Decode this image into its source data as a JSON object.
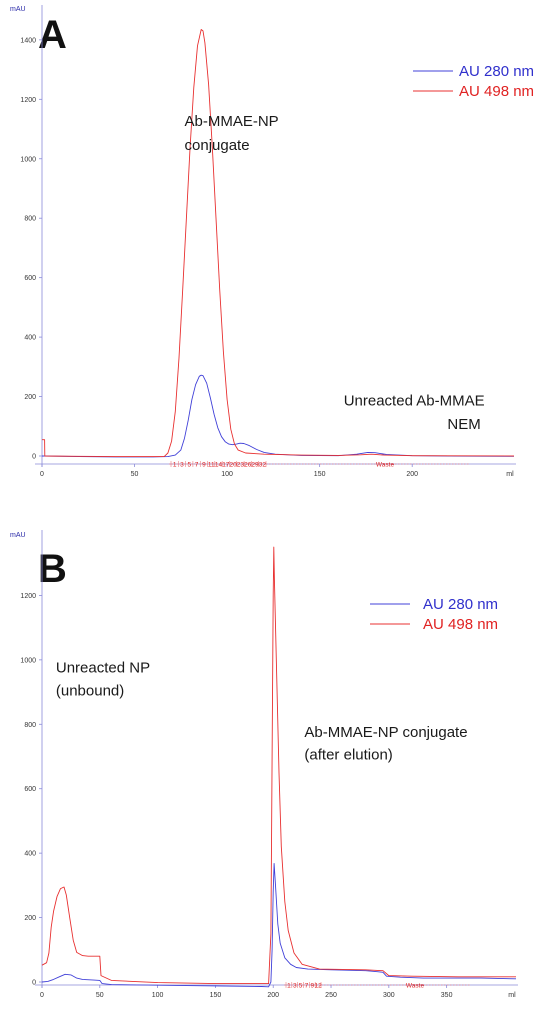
{
  "chart_data": [
    {
      "panel": "A",
      "type": "line",
      "y_unit": "mAU",
      "x_unit": "ml",
      "xlim": [
        0,
        255
      ],
      "ylim": [
        0,
        1450
      ],
      "x_ticks": [
        0,
        50,
        100,
        150,
        200
      ],
      "y_ticks": [
        0,
        200,
        400,
        600,
        800,
        1000,
        1200,
        1400
      ],
      "legend_position": "top-right",
      "series": [
        {
          "name": "AU 280 nm",
          "color": "#4040d8",
          "points": [
            [
              0,
              0
            ],
            [
              20,
              -2
            ],
            [
              40,
              -3
            ],
            [
              60,
              -3
            ],
            [
              68,
              -2
            ],
            [
              72,
              3
            ],
            [
              75,
              20
            ],
            [
              77,
              60
            ],
            [
              79,
              120
            ],
            [
              81,
              190
            ],
            [
              83,
              240
            ],
            [
              85,
              268
            ],
            [
              86,
              272
            ],
            [
              87,
              270
            ],
            [
              89,
              245
            ],
            [
              91,
              195
            ],
            [
              93,
              140
            ],
            [
              95,
              95
            ],
            [
              97,
              65
            ],
            [
              99,
              48
            ],
            [
              101,
              40
            ],
            [
              103,
              38
            ],
            [
              105,
              40
            ],
            [
              107,
              43
            ],
            [
              109,
              42
            ],
            [
              112,
              35
            ],
            [
              116,
              22
            ],
            [
              120,
              12
            ],
            [
              126,
              6
            ],
            [
              140,
              2
            ],
            [
              160,
              1
            ],
            [
              170,
              6
            ],
            [
              176,
              12
            ],
            [
              180,
              11
            ],
            [
              186,
              5
            ],
            [
              200,
              1
            ],
            [
              220,
              0
            ],
            [
              255,
              -1
            ]
          ]
        },
        {
          "name": "AU 498 nm",
          "color": "#e83030",
          "points": [
            [
              0,
              55
            ],
            [
              1.4,
              55
            ],
            [
              1.5,
              0
            ],
            [
              20,
              -1
            ],
            [
              40,
              -2
            ],
            [
              60,
              -2
            ],
            [
              66,
              -2
            ],
            [
              68,
              10
            ],
            [
              70,
              50
            ],
            [
              72,
              150
            ],
            [
              74,
              330
            ],
            [
              76,
              560
            ],
            [
              78,
              800
            ],
            [
              80,
              1040
            ],
            [
              82,
              1240
            ],
            [
              84,
              1380
            ],
            [
              86,
              1435
            ],
            [
              87,
              1430
            ],
            [
              88,
              1390
            ],
            [
              90,
              1250
            ],
            [
              92,
              1040
            ],
            [
              94,
              800
            ],
            [
              96,
              560
            ],
            [
              98,
              350
            ],
            [
              100,
              190
            ],
            [
              102,
              90
            ],
            [
              104,
              40
            ],
            [
              106,
              20
            ],
            [
              110,
              10
            ],
            [
              120,
              6
            ],
            [
              140,
              3
            ],
            [
              160,
              2
            ],
            [
              172,
              4
            ],
            [
              178,
              6
            ],
            [
              185,
              3
            ],
            [
              200,
              1
            ],
            [
              255,
              0
            ]
          ]
        }
      ],
      "annotations": [
        {
          "text": "Ab-MMAE-NP",
          "x": 77,
          "y": 1110
        },
        {
          "text": "conjugate",
          "x": 77,
          "y": 1030
        },
        {
          "text": "Unreacted Ab-MMAE",
          "x": 163,
          "y": 170
        },
        {
          "text": "NEM",
          "x": 219,
          "y": 90
        }
      ],
      "fractions": {
        "labels": [
          "1",
          "3",
          "5",
          "7",
          "9",
          "11",
          "14",
          "17",
          "20",
          "23",
          "26",
          "29",
          "32"
        ],
        "waste": "Waste"
      },
      "x_tick_labels": [
        "0",
        "50",
        "100",
        "150",
        "200",
        "ml"
      ],
      "y_tick_labels": [
        "0",
        "200",
        "400",
        "600",
        "800",
        "1000",
        "1200",
        "1400",
        "mAU"
      ]
    },
    {
      "panel": "B",
      "type": "line",
      "y_unit": "mAU",
      "x_unit": "ml",
      "xlim": [
        0,
        410
      ],
      "ylim": [
        0,
        1400
      ],
      "x_ticks": [
        0,
        50,
        100,
        150,
        200,
        250,
        300,
        350
      ],
      "y_ticks": [
        0,
        200,
        400,
        600,
        800,
        1000,
        1200
      ],
      "legend_position": "top-right",
      "series": [
        {
          "name": "AU 280 nm",
          "color": "#4040d8",
          "points": [
            [
              0,
              0
            ],
            [
              5,
              2
            ],
            [
              10,
              8
            ],
            [
              15,
              16
            ],
            [
              20,
              24
            ],
            [
              25,
              22
            ],
            [
              30,
              12
            ],
            [
              35,
              8
            ],
            [
              45,
              6
            ],
            [
              50,
              5
            ],
            [
              52,
              -5
            ],
            [
              60,
              -8
            ],
            [
              100,
              -10
            ],
            [
              150,
              -12
            ],
            [
              190,
              -14
            ],
            [
              196,
              -15
            ],
            [
              198,
              0
            ],
            [
              199,
              100
            ],
            [
              200,
              280
            ],
            [
              200.8,
              368
            ],
            [
              202,
              300
            ],
            [
              204,
              180
            ],
            [
              206,
              120
            ],
            [
              210,
              75
            ],
            [
              215,
              55
            ],
            [
              220,
              45
            ],
            [
              230,
              40
            ],
            [
              250,
              38
            ],
            [
              280,
              35
            ],
            [
              290,
              32
            ],
            [
              295,
              30
            ],
            [
              298,
              18
            ],
            [
              310,
              15
            ],
            [
              330,
              12
            ],
            [
              380,
              12
            ],
            [
              410,
              10
            ]
          ]
        },
        {
          "name": "AU 498 nm",
          "color": "#e83030",
          "points": [
            [
              0,
              52
            ],
            [
              4,
              60
            ],
            [
              6,
              90
            ],
            [
              8,
              170
            ],
            [
              10,
              220
            ],
            [
              13,
              265
            ],
            [
              16,
              290
            ],
            [
              19,
              295
            ],
            [
              21,
              270
            ],
            [
              24,
              200
            ],
            [
              27,
              130
            ],
            [
              30,
              92
            ],
            [
              35,
              82
            ],
            [
              40,
              80
            ],
            [
              45,
              80
            ],
            [
              50,
              80
            ],
            [
              51,
              20
            ],
            [
              60,
              5
            ],
            [
              100,
              -2
            ],
            [
              150,
              -5
            ],
            [
              190,
              -5
            ],
            [
              196,
              -5
            ],
            [
              198,
              150
            ],
            [
              199,
              700
            ],
            [
              200,
              1200
            ],
            [
              200.5,
              1350
            ],
            [
              201,
              1250
            ],
            [
              203,
              950
            ],
            [
              205,
              650
            ],
            [
              207,
              420
            ],
            [
              210,
              250
            ],
            [
              213,
              160
            ],
            [
              218,
              90
            ],
            [
              225,
              55
            ],
            [
              240,
              40
            ],
            [
              280,
              38
            ],
            [
              295,
              35
            ],
            [
              300,
              20
            ],
            [
              320,
              18
            ],
            [
              360,
              16
            ],
            [
              410,
              16
            ]
          ]
        }
      ],
      "annotations": [
        {
          "text": "Unreacted NP",
          "x": 12,
          "y": 960
        },
        {
          "text": "(unbound)",
          "x": 12,
          "y": 890
        },
        {
          "text": "Ab-MMAE-NP conjugate",
          "x": 227,
          "y": 760
        },
        {
          "text": "(after elution)",
          "x": 227,
          "y": 690
        }
      ],
      "fractions": {
        "labels": [
          "1",
          "3",
          "5",
          "7",
          "9",
          "12"
        ],
        "waste": "Waste"
      },
      "x_tick_labels": [
        "0",
        "50",
        "100",
        "150",
        "200",
        "250",
        "300",
        "350",
        "ml"
      ],
      "y_tick_labels": [
        "0",
        "200",
        "400",
        "600",
        "800",
        "1000",
        "1200",
        "mAU"
      ]
    }
  ]
}
